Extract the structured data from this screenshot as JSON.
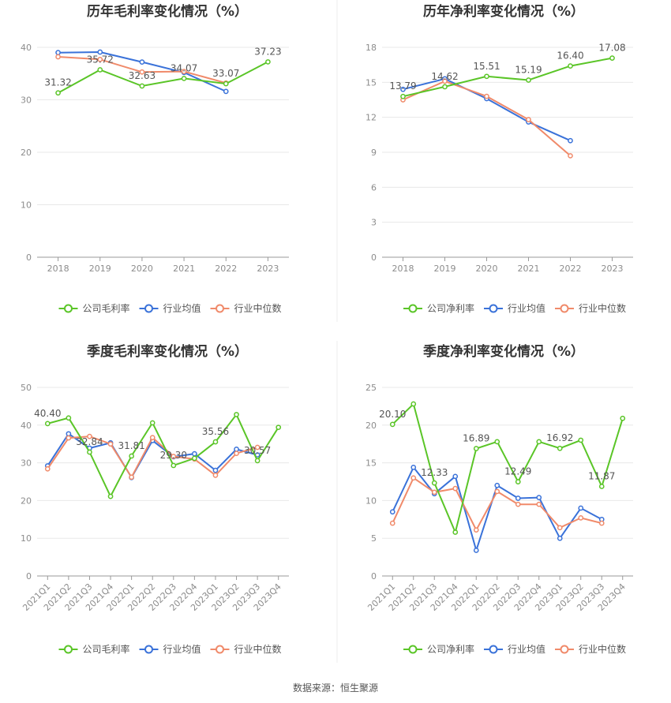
{
  "colors": {
    "company": "#5ac527",
    "avg": "#3a72d9",
    "median": "#f08a6a",
    "grid": "#e8e8e8",
    "axis": "#999999"
  },
  "source_label": "数据来源：恒生聚源",
  "chart_data": [
    {
      "type": "line",
      "title": "历年毛利率变化情况（%）",
      "categories": [
        "2018",
        "2019",
        "2020",
        "2021",
        "2022",
        "2023"
      ],
      "ylim": [
        0,
        40
      ],
      "yticks": [
        0,
        10,
        20,
        30,
        40
      ],
      "grid": true,
      "legend_position": "bottom",
      "series": [
        {
          "name": "公司毛利率",
          "color_key": "company",
          "values": [
            31.32,
            35.72,
            32.63,
            34.07,
            33.07,
            37.23
          ],
          "labels": [
            "31.32",
            "35.72",
            "32.63",
            "34.07",
            "33.07",
            "37.23"
          ]
        },
        {
          "name": "行业均值",
          "color_key": "avg",
          "values": [
            39.0,
            39.1,
            37.2,
            35.2,
            31.6,
            null
          ],
          "labels": []
        },
        {
          "name": "行业中位数",
          "color_key": "median",
          "values": [
            38.2,
            37.7,
            35.3,
            35.4,
            33.2,
            null
          ],
          "labels": []
        }
      ]
    },
    {
      "type": "line",
      "title": "历年净利率变化情况（%）",
      "categories": [
        "2018",
        "2019",
        "2020",
        "2021",
        "2022",
        "2023"
      ],
      "ylim": [
        0,
        18
      ],
      "yticks": [
        0,
        3,
        6,
        9,
        12,
        15,
        18
      ],
      "grid": true,
      "legend_position": "bottom",
      "series": [
        {
          "name": "公司净利率",
          "color_key": "company",
          "values": [
            13.79,
            14.62,
            15.51,
            15.19,
            16.4,
            17.08
          ],
          "labels": [
            "13.79",
            "14.62",
            "15.51",
            "15.19",
            "16.40",
            "17.08"
          ]
        },
        {
          "name": "行业均值",
          "color_key": "avg",
          "values": [
            14.4,
            15.3,
            13.6,
            11.6,
            10.0,
            null
          ],
          "labels": []
        },
        {
          "name": "行业中位数",
          "color_key": "median",
          "values": [
            13.5,
            15.1,
            13.8,
            11.8,
            8.7,
            null
          ],
          "labels": []
        }
      ]
    },
    {
      "type": "line",
      "title": "季度毛利率变化情况（%）",
      "categories": [
        "2021Q1",
        "2021Q2",
        "2021Q3",
        "2021Q4",
        "2022Q1",
        "2022Q2",
        "2022Q3",
        "2022Q4",
        "2023Q1",
        "2023Q2",
        "2023Q3",
        "2023Q4"
      ],
      "rotate_x_labels": true,
      "ylim": [
        0,
        50
      ],
      "yticks": [
        0,
        10,
        20,
        30,
        40,
        50
      ],
      "grid": true,
      "legend_position": "bottom",
      "series": [
        {
          "name": "公司毛利率",
          "color_key": "company",
          "values": [
            40.4,
            41.9,
            32.84,
            21.1,
            31.81,
            40.6,
            29.3,
            31.2,
            35.56,
            42.8,
            30.57,
            39.4
          ],
          "labels": [
            "40.40",
            "",
            "32.84",
            "",
            "31.81",
            "",
            "29.30",
            "",
            "35.56",
            "",
            "30.57",
            ""
          ]
        },
        {
          "name": "行业均值",
          "color_key": "avg",
          "values": [
            29.2,
            37.7,
            33.9,
            35.3,
            26.1,
            35.9,
            31.6,
            32.4,
            28.0,
            33.6,
            32.1,
            null
          ],
          "labels": []
        },
        {
          "name": "行业中位数",
          "color_key": "median",
          "values": [
            28.4,
            36.6,
            37.0,
            35.0,
            26.2,
            36.7,
            31.7,
            31.0,
            26.7,
            32.5,
            34.1,
            null
          ],
          "labels": []
        }
      ]
    },
    {
      "type": "line",
      "title": "季度净利率变化情况（%）",
      "categories": [
        "2021Q1",
        "2021Q2",
        "2021Q3",
        "2021Q4",
        "2022Q1",
        "2022Q2",
        "2022Q3",
        "2022Q4",
        "2023Q1",
        "2023Q2",
        "2023Q3",
        "2023Q4"
      ],
      "rotate_x_labels": true,
      "ylim": [
        0,
        25
      ],
      "yticks": [
        0,
        5,
        10,
        15,
        20,
        25
      ],
      "grid": true,
      "legend_position": "bottom",
      "series": [
        {
          "name": "公司净利率",
          "color_key": "company",
          "values": [
            20.1,
            22.8,
            12.33,
            5.8,
            16.89,
            17.8,
            12.49,
            17.8,
            16.92,
            18.0,
            11.87,
            20.9
          ],
          "labels": [
            "20.10",
            "",
            "12.33",
            "",
            "16.89",
            "",
            "12.49",
            "",
            "16.92",
            "",
            "11.87",
            ""
          ]
        },
        {
          "name": "行业均值",
          "color_key": "avg",
          "values": [
            8.5,
            14.4,
            10.9,
            13.2,
            3.4,
            12.0,
            10.3,
            10.4,
            5.0,
            9.0,
            7.5,
            null
          ],
          "labels": []
        },
        {
          "name": "行业中位数",
          "color_key": "median",
          "values": [
            7.0,
            13.0,
            11.1,
            11.6,
            6.1,
            11.2,
            9.5,
            9.5,
            6.4,
            7.7,
            7.0,
            null
          ],
          "labels": []
        }
      ]
    }
  ]
}
